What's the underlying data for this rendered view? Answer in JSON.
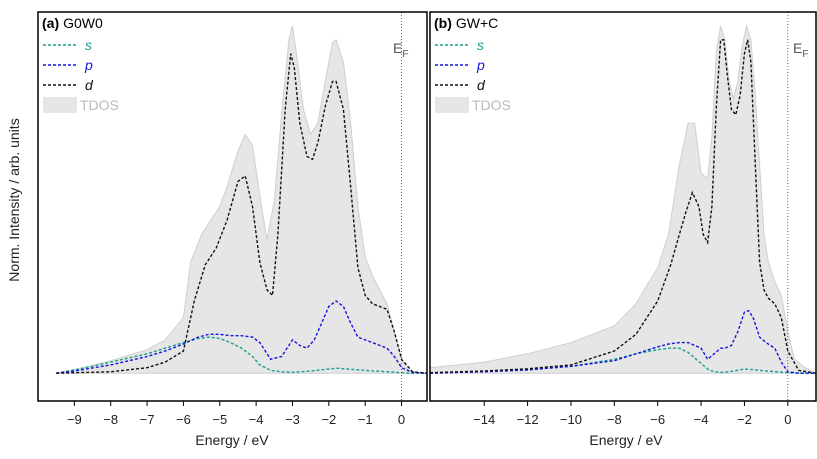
{
  "ylabel": "Norm. Intensity / arb. units",
  "colors": {
    "s": "#1a9e8f",
    "p": "#1515dd",
    "d": "#111111",
    "tdos": "#e6e6e6",
    "tdos_edge": "#cfcfcf",
    "legend_tdos_text": "#bbbbbb"
  },
  "chart_data": [
    {
      "type": "line",
      "panel_label": "(a)",
      "title": "G0W0",
      "xlabel": "Energy / eV",
      "ylabel": "Norm. Intensity / arb. units",
      "xlim": [
        -10,
        0.7
      ],
      "ylim": [
        -0.1,
        1.3
      ],
      "x_ticks": [
        -9,
        -8,
        -7,
        -6,
        -5,
        -4,
        -3,
        -2,
        -1,
        0
      ],
      "fermi_label": "E",
      "fermi_sub": "F",
      "fermi_x": 0,
      "legend": [
        {
          "key": "s",
          "label": "s"
        },
        {
          "key": "p",
          "label": "p"
        },
        {
          "key": "d",
          "label": "d"
        },
        {
          "key": "tdos",
          "label": "TDOS"
        }
      ],
      "series": [
        {
          "key": "tdos",
          "name": "TDOS",
          "x": [
            -9.5,
            -9,
            -8,
            -7,
            -6.5,
            -6,
            -5.8,
            -5.5,
            -5.2,
            -5,
            -4.8,
            -4.5,
            -4.3,
            -4.1,
            -3.9,
            -3.7,
            -3.5,
            -3.3,
            -3.1,
            -3.0,
            -2.9,
            -2.7,
            -2.5,
            -2.3,
            -2.1,
            -1.9,
            -1.8,
            -1.6,
            -1.4,
            -1.2,
            -1.0,
            -0.8,
            -0.6,
            -0.4,
            -0.2,
            0,
            0.2,
            0.5,
            0.7
          ],
          "y": [
            0.001,
            0.01,
            0.045,
            0.085,
            0.12,
            0.2,
            0.4,
            0.5,
            0.56,
            0.6,
            0.67,
            0.8,
            0.86,
            0.82,
            0.64,
            0.48,
            0.62,
            0.93,
            1.2,
            1.25,
            1.16,
            0.95,
            0.86,
            0.9,
            1.05,
            1.19,
            1.2,
            1.12,
            0.9,
            0.6,
            0.42,
            0.35,
            0.3,
            0.25,
            0.15,
            0.05,
            0.01,
            0.0,
            0.0
          ]
        },
        {
          "key": "s",
          "name": "s",
          "x": [
            -9.5,
            -9,
            -8,
            -7,
            -6.5,
            -6,
            -5.6,
            -5.3,
            -5,
            -4.7,
            -4.4,
            -4.1,
            -3.9,
            -3.6,
            -3.3,
            -3,
            -2.5,
            -2,
            -1.8,
            -1.5,
            -1,
            -0.5,
            0,
            0.3,
            0.7
          ],
          "y": [
            0.0,
            0.012,
            0.04,
            0.07,
            0.09,
            0.11,
            0.125,
            0.13,
            0.125,
            0.11,
            0.09,
            0.06,
            0.03,
            0.01,
            0.005,
            0.003,
            0.008,
            0.015,
            0.018,
            0.015,
            0.01,
            0.006,
            0.002,
            0.0,
            0.0
          ]
        },
        {
          "key": "p",
          "name": "p",
          "x": [
            -9.5,
            -9,
            -8,
            -7,
            -6.5,
            -6,
            -5.6,
            -5.3,
            -5,
            -4.7,
            -4.4,
            -4.1,
            -3.9,
            -3.6,
            -3.3,
            -3.0,
            -2.8,
            -2.6,
            -2.4,
            -2.2,
            -2.0,
            -1.8,
            -1.6,
            -1.4,
            -1.2,
            -1.0,
            -0.8,
            -0.6,
            -0.4,
            -0.2,
            0,
            0.3,
            0.7
          ],
          "y": [
            0.0,
            0.008,
            0.03,
            0.06,
            0.08,
            0.105,
            0.13,
            0.14,
            0.14,
            0.135,
            0.135,
            0.13,
            0.11,
            0.05,
            0.06,
            0.12,
            0.1,
            0.09,
            0.12,
            0.18,
            0.24,
            0.26,
            0.24,
            0.18,
            0.13,
            0.12,
            0.11,
            0.1,
            0.09,
            0.06,
            0.02,
            0.003,
            0.0
          ],
          "stroke": "dash"
        },
        {
          "key": "d",
          "name": "d",
          "x": [
            -9.5,
            -8,
            -7,
            -6.5,
            -6,
            -5.7,
            -5.4,
            -5.1,
            -4.8,
            -4.5,
            -4.3,
            -4.1,
            -3.9,
            -3.7,
            -3.55,
            -3.4,
            -3.2,
            -3.05,
            -2.95,
            -2.8,
            -2.6,
            -2.45,
            -2.3,
            -2.1,
            -1.9,
            -1.8,
            -1.6,
            -1.4,
            -1.2,
            -1.0,
            -0.8,
            -0.6,
            -0.4,
            -0.2,
            0,
            0.3,
            0.7
          ],
          "y": [
            0.0,
            0.005,
            0.02,
            0.04,
            0.08,
            0.26,
            0.39,
            0.45,
            0.55,
            0.69,
            0.71,
            0.6,
            0.4,
            0.3,
            0.28,
            0.5,
            0.95,
            1.15,
            1.1,
            0.9,
            0.78,
            0.77,
            0.83,
            0.96,
            1.05,
            1.05,
            0.95,
            0.67,
            0.38,
            0.28,
            0.25,
            0.24,
            0.23,
            0.15,
            0.05,
            0.005,
            0.0
          ],
          "stroke": "dash"
        }
      ]
    },
    {
      "type": "line",
      "panel_label": "(b)",
      "title": "GW+C",
      "xlabel": "Energy / eV",
      "xlim": [
        -16.5,
        1.3
      ],
      "ylim": [
        -0.1,
        1.3
      ],
      "x_ticks": [
        -14,
        -12,
        -10,
        -8,
        -6,
        -4,
        -2,
        0
      ],
      "fermi_label": "E",
      "fermi_sub": "F",
      "fermi_x": 0,
      "legend": [
        {
          "key": "s",
          "label": "s"
        },
        {
          "key": "p",
          "label": "p"
        },
        {
          "key": "d",
          "label": "d"
        },
        {
          "key": "tdos",
          "label": "TDOS"
        }
      ],
      "series": [
        {
          "key": "tdos",
          "name": "TDOS",
          "x": [
            -16.5,
            -14,
            -12,
            -10,
            -8,
            -7,
            -6,
            -5.5,
            -5,
            -4.6,
            -4.3,
            -4.0,
            -3.7,
            -3.5,
            -3.3,
            -3.1,
            -2.9,
            -2.7,
            -2.5,
            -2.3,
            -2.1,
            -1.9,
            -1.7,
            -1.5,
            -1.3,
            -1.1,
            -0.9,
            -0.6,
            -0.3,
            0,
            0.3,
            0.8,
            1.3
          ],
          "y": [
            0.02,
            0.04,
            0.07,
            0.11,
            0.17,
            0.25,
            0.38,
            0.5,
            0.75,
            0.9,
            0.9,
            0.72,
            0.7,
            0.85,
            1.15,
            1.25,
            1.2,
            1.05,
            0.99,
            1.05,
            1.18,
            1.25,
            1.2,
            1.0,
            0.75,
            0.5,
            0.4,
            0.33,
            0.28,
            0.15,
            0.05,
            0.02,
            0.0
          ]
        },
        {
          "key": "s",
          "name": "s",
          "x": [
            -16.5,
            -14,
            -12,
            -10,
            -8,
            -7,
            -6,
            -5.5,
            -5,
            -4.6,
            -4.3,
            -4.0,
            -3.7,
            -3.4,
            -3,
            -2.5,
            -2,
            -1.5,
            -1,
            -0.5,
            0,
            0.5,
            1.3
          ],
          "y": [
            0.0,
            0.006,
            0.012,
            0.025,
            0.05,
            0.07,
            0.085,
            0.09,
            0.09,
            0.075,
            0.055,
            0.035,
            0.015,
            0.005,
            0.003,
            0.008,
            0.015,
            0.012,
            0.008,
            0.005,
            0.002,
            0.0,
            0.0
          ]
        },
        {
          "key": "p",
          "name": "p",
          "x": [
            -16.5,
            -14,
            -12,
            -10,
            -8,
            -7,
            -6,
            -5.5,
            -5,
            -4.6,
            -4.3,
            -4.0,
            -3.7,
            -3.4,
            -3.1,
            -2.9,
            -2.6,
            -2.3,
            -2.0,
            -1.8,
            -1.6,
            -1.3,
            -1.0,
            -0.6,
            -0.3,
            0,
            0.5,
            1.3
          ],
          "y": [
            0.0,
            0.005,
            0.012,
            0.025,
            0.045,
            0.07,
            0.095,
            0.105,
            0.11,
            0.11,
            0.1,
            0.09,
            0.05,
            0.07,
            0.09,
            0.09,
            0.1,
            0.15,
            0.22,
            0.225,
            0.2,
            0.13,
            0.11,
            0.09,
            0.04,
            0.005,
            0.0,
            0.0
          ],
          "stroke": "dash"
        },
        {
          "key": "d",
          "name": "d",
          "x": [
            -16.5,
            -14,
            -12,
            -10,
            -8,
            -7,
            -6,
            -5.4,
            -5,
            -4.7,
            -4.4,
            -4.1,
            -3.9,
            -3.7,
            -3.5,
            -3.3,
            -3.1,
            -2.95,
            -2.8,
            -2.6,
            -2.4,
            -2.2,
            -2.0,
            -1.85,
            -1.7,
            -1.5,
            -1.3,
            -1.1,
            -0.9,
            -0.6,
            -0.3,
            0,
            0.5,
            1.3
          ],
          "y": [
            0.002,
            0.008,
            0.016,
            0.03,
            0.08,
            0.14,
            0.26,
            0.39,
            0.5,
            0.58,
            0.65,
            0.6,
            0.5,
            0.47,
            0.6,
            0.95,
            1.2,
            1.2,
            1.08,
            0.95,
            0.93,
            1.0,
            1.15,
            1.2,
            1.12,
            0.75,
            0.4,
            0.3,
            0.27,
            0.25,
            0.2,
            0.08,
            0.01,
            0.0
          ],
          "stroke": "dash"
        }
      ]
    }
  ]
}
